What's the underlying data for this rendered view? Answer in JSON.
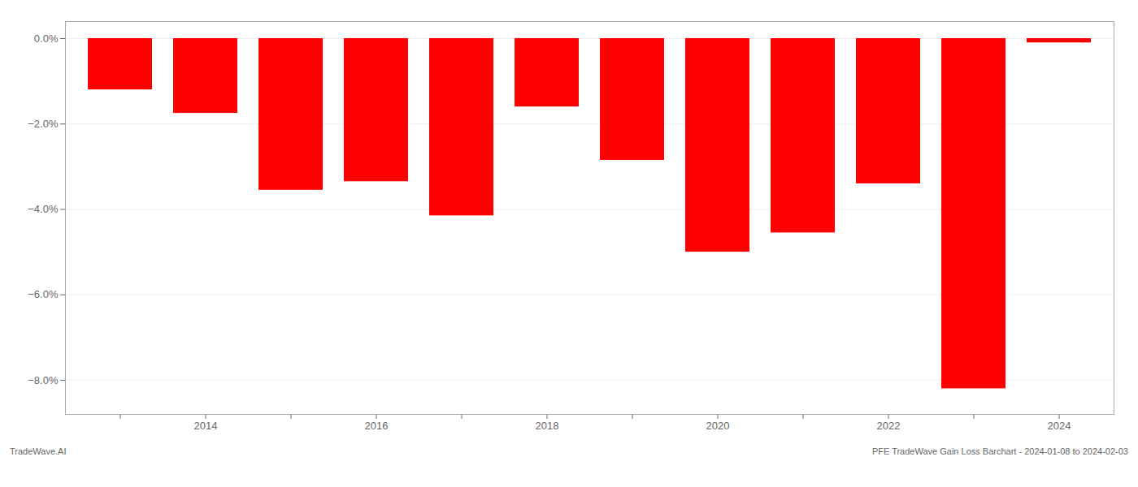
{
  "chart_data": {
    "type": "bar",
    "categories": [
      null,
      "2014",
      null,
      "2016",
      null,
      "2018",
      null,
      "2020",
      null,
      "2022",
      null,
      "2024"
    ],
    "values": [
      -1.2,
      -1.75,
      -3.55,
      -3.35,
      -4.15,
      -1.6,
      -2.85,
      -5.0,
      -4.55,
      -3.4,
      -8.2,
      -0.1
    ],
    "color": "#ff0000",
    "ylim": [
      -8.8,
      0.4
    ],
    "yticks": [
      {
        "value": 0.0,
        "label": "0.0%"
      },
      {
        "value": -2.0,
        "label": "−2.0%"
      },
      {
        "value": -4.0,
        "label": "−4.0%"
      },
      {
        "value": -6.0,
        "label": "−6.0%"
      },
      {
        "value": -8.0,
        "label": "−8.0%"
      }
    ],
    "grid": true,
    "annotations": [
      "TradeWave.AI",
      "PFE TradeWave Gain Loss Barchart - 2024-01-08 to 2024-02-03"
    ]
  }
}
